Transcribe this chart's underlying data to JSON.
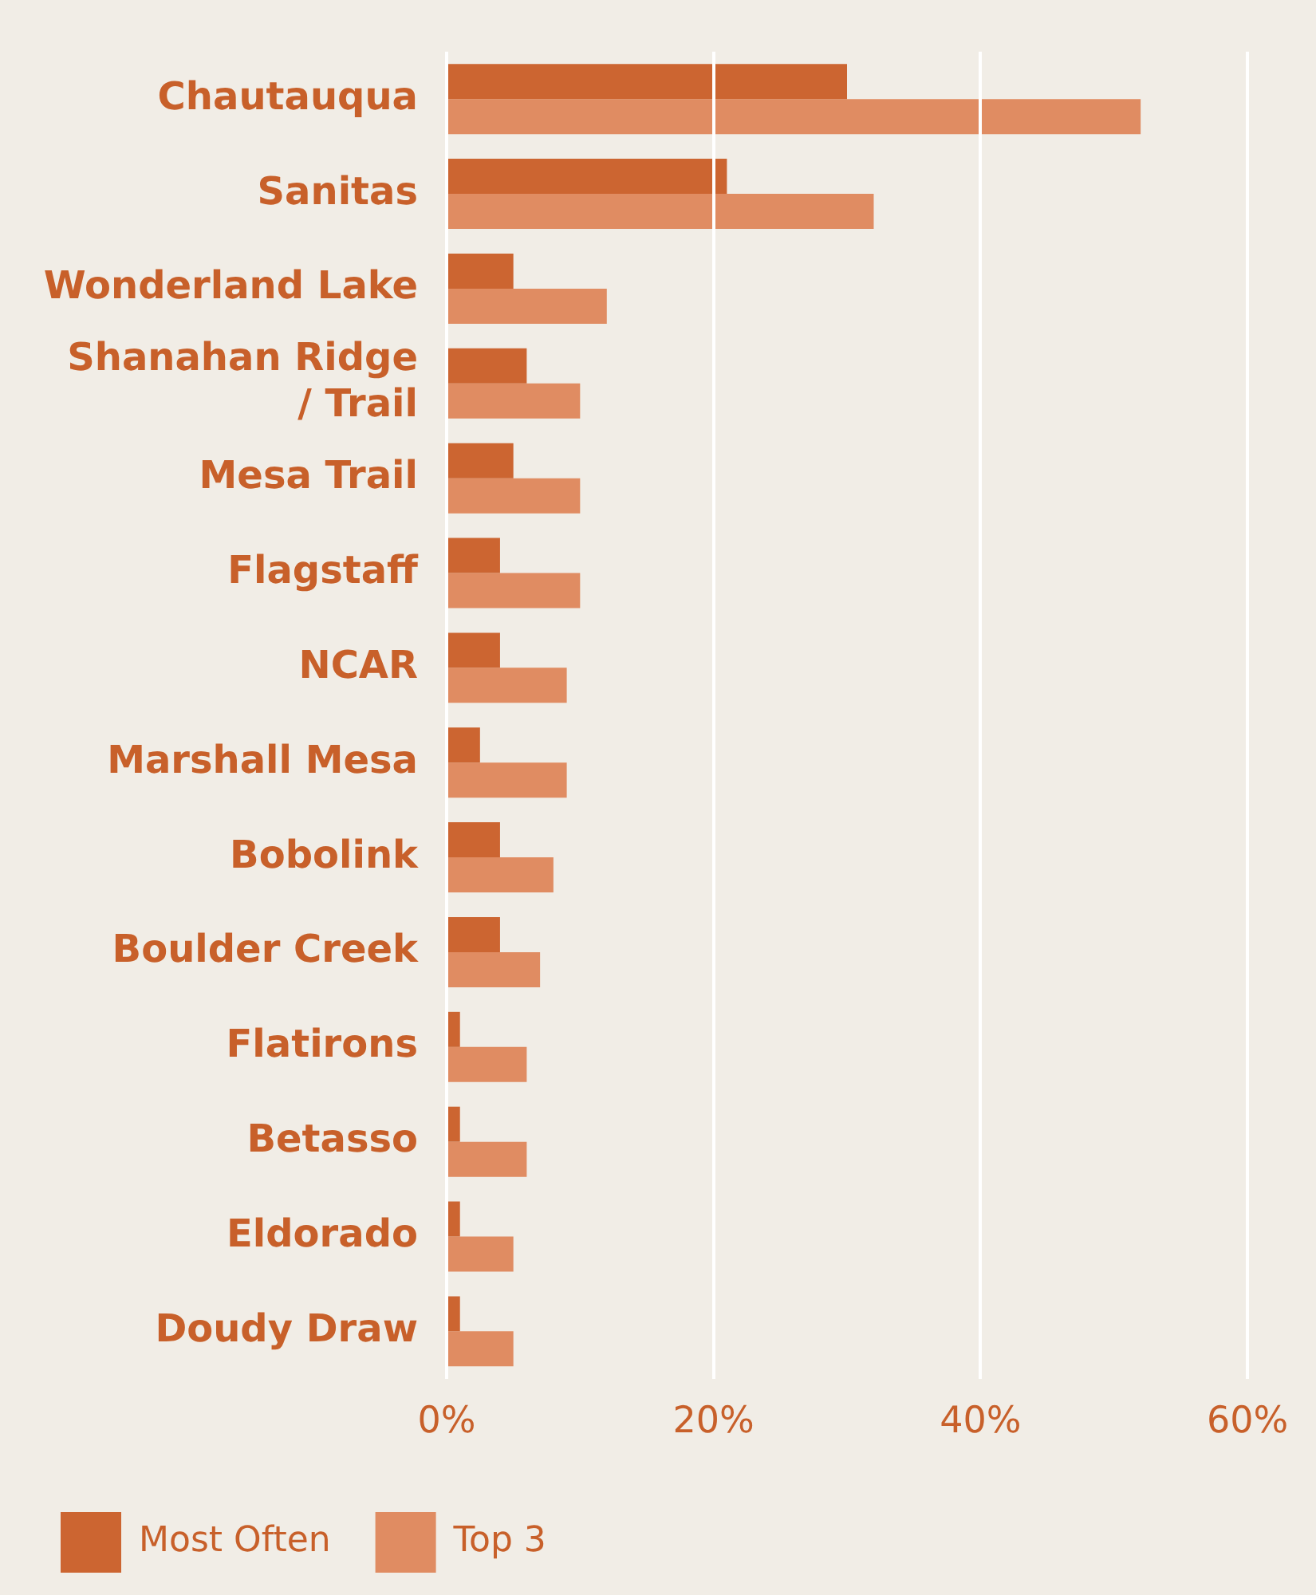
{
  "chart_data": {
    "type": "bar",
    "orientation": "horizontal",
    "categories": [
      "Chautauqua",
      "Sanitas",
      "Wonderland Lake",
      "Shanahan Ridge\n/ Trail",
      "Mesa Trail",
      "Flagstaff",
      "NCAR",
      "Marshall Mesa",
      "Bobolink",
      "Boulder Creek",
      "Flatirons",
      "Betasso",
      "Eldorado",
      "Doudy Draw"
    ],
    "series": [
      {
        "name": "Most Often",
        "color": "#cc6531",
        "values": [
          30,
          21,
          5,
          6,
          5,
          4,
          4,
          2.5,
          4,
          4,
          1,
          1,
          1,
          1
        ]
      },
      {
        "name": "Top 3",
        "color": "#e08c62",
        "values": [
          52,
          32,
          12,
          10,
          10,
          10,
          9,
          9,
          8,
          7,
          6,
          6,
          5,
          5
        ]
      }
    ],
    "xlim": [
      0,
      60
    ],
    "xticks": [
      {
        "value": 0,
        "label": "0%"
      },
      {
        "value": 20,
        "label": "20%"
      },
      {
        "value": 40,
        "label": "40%"
      },
      {
        "value": 60,
        "label": "60%"
      }
    ],
    "grid": "x",
    "legend": "bottom left"
  }
}
